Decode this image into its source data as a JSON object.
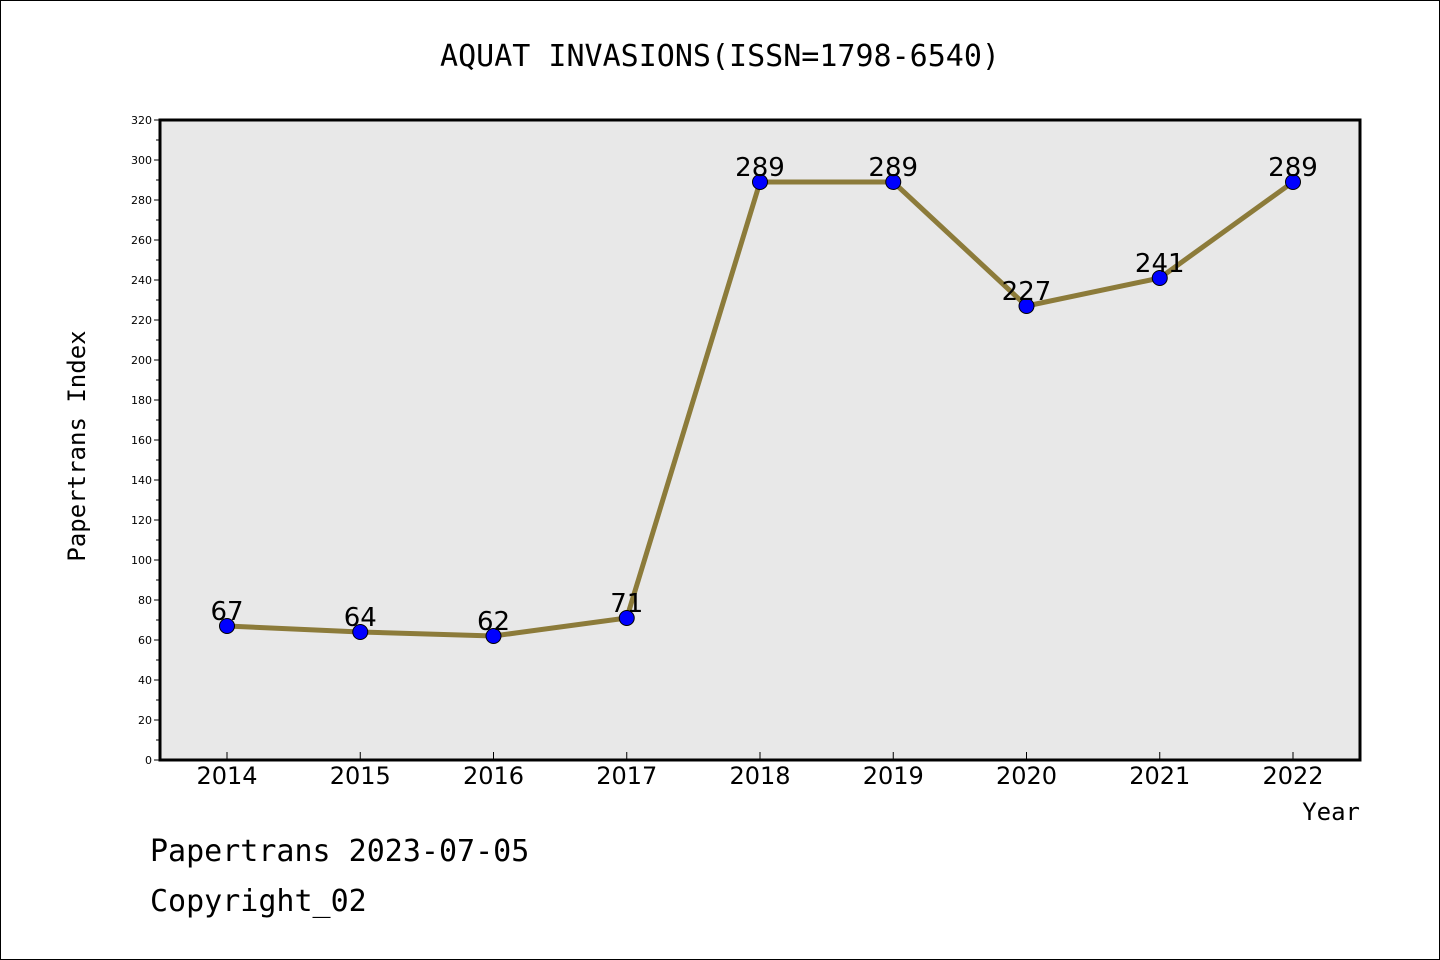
{
  "chart_data": {
    "type": "line",
    "title": "AQUAT INVASIONS(ISSN=1798-6540)",
    "xlabel": "Year",
    "ylabel": "Papertrans Index",
    "categories": [
      "2014",
      "2015",
      "2016",
      "2017",
      "2018",
      "2019",
      "2020",
      "2021",
      "2022"
    ],
    "series": [
      {
        "values": [
          67,
          64,
          62,
          71,
          289,
          289,
          227,
          241,
          289
        ]
      }
    ],
    "ylim": [
      0,
      320
    ],
    "yticks": [
      0,
      20,
      40,
      60,
      80,
      100,
      120,
      140,
      160,
      180,
      200,
      220,
      240,
      260,
      280,
      300,
      320
    ],
    "grid": false,
    "legend": "none",
    "colors": {
      "line": "#8C7B3A",
      "marker": "#0000FF",
      "plot_bg": "#E8E8E8"
    }
  },
  "footer": {
    "line1": "Papertrans 2023-07-05",
    "line2": "Copyright_02"
  }
}
